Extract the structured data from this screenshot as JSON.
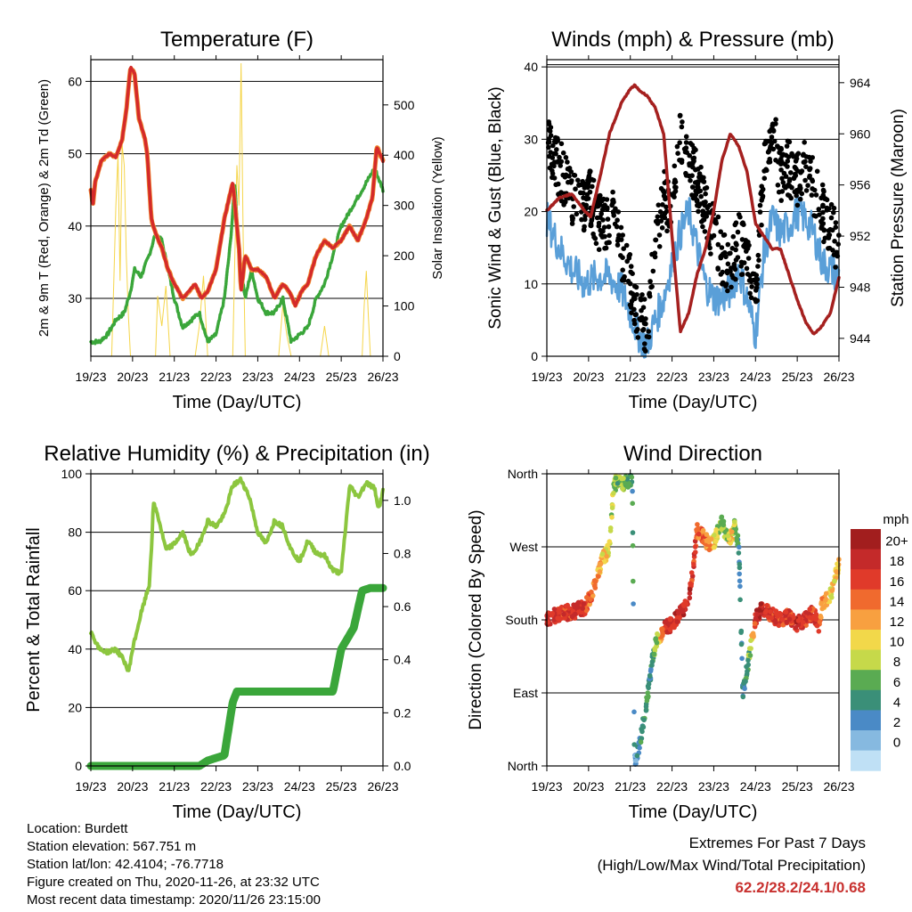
{
  "x_ticks": [
    "19/23",
    "20/23",
    "21/23",
    "22/23",
    "23/23",
    "24/23",
    "25/23",
    "26/23"
  ],
  "x_label": "Time (Day/UTC)",
  "info": {
    "location": "Location: Burdett",
    "elevation": "Station elevation: 567.751 m",
    "latlon": "Station lat/lon: 42.4104; -76.7718",
    "created": "Figure created on Thu, 2020-11-26, at 23:32 UTC",
    "recent": "Most recent data timestamp: 2020/11/26 23:15:00"
  },
  "extremes": {
    "title": "Extremes For Past 7 Days",
    "subtitle": "(High/Low/Max Wind/Total Precipitation)",
    "values": "62.2/28.2/24.1/0.68"
  },
  "colors": {
    "temp": "#d42a2a",
    "temp9m": "#f08a30",
    "dewpoint": "#3aa63a",
    "solar": "#f5d54a",
    "wind": "#5a9fd8",
    "gust": "#000000",
    "pressure": "#a5201f",
    "rh": "#8cc63f",
    "precip": "#3aa63a"
  },
  "chart_data": [
    {
      "type": "line",
      "title": "Temperature (F)",
      "xlabel": "Time (Day/UTC)",
      "ylabel": "2m & 9m T (Red, Orange) & 2m Td (Green)",
      "y2label": "Solar Insolation (Yellow)",
      "xlim": [
        0,
        7
      ],
      "ylim": [
        22,
        63
      ],
      "y2lim": [
        0,
        590
      ],
      "yticks": [
        30,
        40,
        50,
        60
      ],
      "y2ticks": [
        0,
        100,
        200,
        300,
        400,
        500
      ],
      "grid": true,
      "series": [
        {
          "role": "temperature_2m",
          "x": [
            0,
            0.05,
            0.1,
            0.25,
            0.45,
            0.6,
            0.75,
            0.85,
            0.95,
            1.05,
            1.15,
            1.3,
            1.35,
            1.45,
            1.55,
            1.7,
            1.85,
            2.0,
            2.2,
            2.35,
            2.5,
            2.65,
            2.8,
            3.0,
            3.2,
            3.4,
            3.55,
            3.6,
            3.7,
            3.85,
            4.0,
            4.2,
            4.4,
            4.6,
            4.75,
            4.9,
            5.05,
            5.2,
            5.4,
            5.6,
            5.8,
            6.0,
            6.2,
            6.4,
            6.6,
            6.75,
            6.85,
            7.0
          ],
          "y": [
            45,
            43,
            46,
            49,
            50,
            49.5,
            52,
            56,
            62,
            61,
            55,
            52,
            50,
            41,
            39,
            37,
            34,
            32,
            30,
            31,
            32,
            30,
            31,
            34,
            41,
            46,
            37,
            31,
            36,
            34,
            34,
            33,
            30,
            32,
            31,
            29,
            31,
            32,
            36,
            38,
            37,
            38,
            40,
            38,
            41,
            44,
            51,
            49
          ]
        },
        {
          "role": "dewpoint_2m",
          "x": [
            0,
            0.2,
            0.4,
            0.6,
            0.8,
            0.95,
            1.05,
            1.2,
            1.4,
            1.55,
            1.7,
            1.85,
            2.0,
            2.2,
            2.4,
            2.6,
            2.8,
            3.0,
            3.2,
            3.35,
            3.45,
            3.55,
            3.7,
            3.85,
            4.0,
            4.2,
            4.4,
            4.6,
            4.8,
            5.0,
            5.2,
            5.4,
            5.6,
            5.8,
            6.0,
            6.2,
            6.4,
            6.6,
            6.8,
            7.0
          ],
          "y": [
            24,
            24,
            25,
            27,
            28,
            31,
            34,
            33,
            36,
            39,
            38,
            34,
            30,
            26,
            27,
            28,
            24,
            25,
            30,
            38,
            46,
            36,
            30,
            34,
            30,
            28,
            28,
            30,
            24,
            25,
            26,
            30,
            32,
            36,
            40,
            42,
            44,
            46,
            48,
            45
          ]
        },
        {
          "role": "solar_insolation",
          "x": [
            0.5,
            0.55,
            0.6,
            0.65,
            0.7,
            0.75,
            0.8,
            0.85,
            0.9,
            0.95,
            1.55,
            1.6,
            1.7,
            1.8,
            1.9,
            2.5,
            2.6,
            2.7,
            2.8,
            3.4,
            3.45,
            3.5,
            3.55,
            3.6,
            3.65,
            3.7,
            4.5,
            4.6,
            4.7,
            4.8,
            5.5,
            5.6,
            5.7,
            6.5,
            6.55,
            6.6,
            6.65,
            6.7
          ],
          "y": [
            0,
            150,
            300,
            400,
            150,
            420,
            380,
            200,
            80,
            0,
            0,
            120,
            60,
            140,
            0,
            0,
            60,
            160,
            0,
            0,
            200,
            380,
            300,
            583,
            240,
            0,
            0,
            100,
            40,
            0,
            0,
            60,
            0,
            0,
            100,
            170,
            80,
            0
          ]
        }
      ]
    },
    {
      "type": "scatter",
      "title": "Winds (mph) & Pressure (mb)",
      "xlabel": "Time (Day/UTC)",
      "ylabel": "Sonic Wind & Gust (Blue, Black)",
      "y2label": "Station Pressure (Maroon)",
      "xlim": [
        0,
        7
      ],
      "ylim": [
        0,
        41
      ],
      "y2lim": [
        942.6,
        965.8
      ],
      "yticks": [
        0,
        10,
        20,
        30,
        40
      ],
      "y2ticks": [
        944,
        948,
        952,
        956,
        960,
        964
      ],
      "grid": true,
      "series": [
        {
          "role": "sonic_wind",
          "x": [
            0,
            0.3,
            0.6,
            0.9,
            1.2,
            1.5,
            1.8,
            2.0,
            2.2,
            2.4,
            2.6,
            2.8,
            3.0,
            3.2,
            3.4,
            3.6,
            3.8,
            4.0,
            4.2,
            4.4,
            4.6,
            4.8,
            5.0,
            5.2,
            5.4,
            5.6,
            5.8,
            6.0,
            6.2,
            6.4,
            6.6,
            6.8,
            7.0
          ],
          "y": [
            19,
            15,
            12,
            10,
            11,
            11,
            9,
            6,
            3,
            1.5,
            5,
            8,
            13,
            17,
            20,
            15,
            10,
            8,
            8,
            9,
            12,
            8,
            3,
            14,
            19,
            17,
            18,
            20,
            19,
            17,
            13,
            12,
            11
          ]
        },
        {
          "role": "gust",
          "x": [
            0,
            0.2,
            0.4,
            0.6,
            0.8,
            1.0,
            1.2,
            1.4,
            1.6,
            1.8,
            2.0,
            2.2,
            2.4,
            2.6,
            2.8,
            3.0,
            3.2,
            3.4,
            3.6,
            3.8,
            4.0,
            4.2,
            4.4,
            4.6,
            4.8,
            5.0,
            5.2,
            5.4,
            5.6,
            5.8,
            6.0,
            6.2,
            6.4,
            6.6,
            6.8,
            7.0
          ],
          "y": [
            30,
            27,
            25,
            22,
            20,
            23,
            19,
            18,
            21,
            14,
            10,
            6,
            4,
            15,
            22,
            19,
            31,
            27,
            24,
            20,
            17,
            14,
            12,
            16,
            13,
            7,
            27,
            32,
            25,
            26,
            24,
            26,
            23,
            20,
            18,
            15
          ]
        },
        {
          "role": "pressure",
          "x": [
            0,
            0.3,
            0.6,
            0.9,
            1.05,
            1.3,
            1.5,
            1.8,
            2.0,
            2.1,
            2.25,
            2.4,
            2.6,
            2.8,
            3.0,
            3.2,
            3.4,
            3.6,
            3.8,
            4.0,
            4.2,
            4.4,
            4.6,
            4.8,
            5.0,
            5.2,
            5.4,
            5.6,
            5.8,
            6.0,
            6.2,
            6.4,
            6.6,
            6.8,
            7.0
          ],
          "y": [
            954,
            955,
            955.3,
            954,
            953.5,
            957,
            960,
            962.5,
            963.5,
            963.8,
            963.3,
            963,
            962,
            960,
            952,
            944.5,
            946,
            949,
            951,
            954,
            958,
            960,
            959,
            957,
            953,
            952,
            951,
            951,
            949,
            947,
            945.3,
            944.3,
            945,
            946,
            948.8
          ]
        }
      ]
    },
    {
      "type": "line",
      "title": "Relative Humidity (%) & Precipitation (in)",
      "xlabel": "Time (Day/UTC)",
      "ylabel": "Percent & Total Rainfall",
      "xlim": [
        0,
        7
      ],
      "ylim": [
        0,
        100
      ],
      "y2lim": [
        0,
        1.1
      ],
      "yticks": [
        0,
        20,
        40,
        60,
        80,
        100
      ],
      "y2ticks": [
        0.0,
        0.2,
        0.4,
        0.6,
        0.8,
        1.0
      ],
      "grid": true,
      "series": [
        {
          "role": "relative_humidity",
          "x": [
            0,
            0.1,
            0.2,
            0.4,
            0.6,
            0.8,
            0.9,
            1.0,
            1.2,
            1.4,
            1.45,
            1.5,
            1.6,
            1.7,
            1.8,
            2.0,
            2.2,
            2.4,
            2.6,
            2.8,
            3.0,
            3.2,
            3.4,
            3.5,
            3.6,
            3.8,
            4.0,
            4.2,
            4.4,
            4.6,
            4.8,
            5.0,
            5.2,
            5.4,
            5.6,
            5.8,
            6.0,
            6.2,
            6.4,
            6.6,
            6.8,
            6.9,
            7.0
          ],
          "y": [
            46,
            43,
            40,
            39,
            40,
            36,
            32,
            40,
            52,
            62,
            74,
            90,
            86,
            80,
            74,
            76,
            80,
            72,
            76,
            84,
            82,
            86,
            96,
            97,
            98,
            92,
            80,
            76,
            84,
            82,
            74,
            70,
            77,
            73,
            72,
            67,
            66,
            96,
            92,
            97,
            95,
            88,
            94
          ]
        },
        {
          "role": "total_precipitation",
          "x": [
            0,
            1.0,
            2.0,
            2.6,
            2.8,
            3.2,
            3.4,
            3.5,
            4.0,
            4.8,
            5.5,
            5.8,
            6.0,
            6.3,
            6.5,
            6.7,
            7.0
          ],
          "y": [
            0,
            0,
            0,
            0,
            0.02,
            0.04,
            0.24,
            0.28,
            0.28,
            0.28,
            0.28,
            0.28,
            0.44,
            0.52,
            0.66,
            0.67,
            0.67
          ]
        }
      ]
    },
    {
      "type": "scatter",
      "title": "Wind Direction",
      "xlabel": "Time (Day/UTC)",
      "ylabel": "Direction (Colored By Speed)",
      "xlim": [
        0,
        7
      ],
      "ylim": [
        0,
        360
      ],
      "ytick_labels": [
        "North",
        "East",
        "South",
        "West",
        "North"
      ],
      "yticks": [
        0,
        90,
        180,
        270,
        360
      ],
      "grid": true,
      "colorbar": {
        "label": "mph",
        "ticks": [
          "20+",
          "18",
          "16",
          "14",
          "12",
          "10",
          "8",
          "6",
          "4",
          "2",
          "0"
        ],
        "colors": [
          "#a21e1e",
          "#c42a2a",
          "#e03a2a",
          "#f06a2e",
          "#f8a040",
          "#f2d84a",
          "#c6d94a",
          "#5aab52",
          "#3a8f78",
          "#4a8ac6",
          "#86b9e0",
          "#bfe0f5"
        ]
      },
      "series": [
        {
          "role": "direction",
          "x": [
            0,
            0.2,
            0.4,
            0.6,
            0.8,
            0.9,
            1.0,
            1.1,
            1.2,
            1.3,
            1.4,
            1.5,
            1.6,
            1.7,
            1.8,
            1.9,
            2.0,
            2.05,
            2.1,
            2.2,
            2.3,
            2.4,
            2.5,
            2.6,
            2.8,
            3.0,
            3.2,
            3.4,
            3.6,
            3.8,
            3.9,
            4.0,
            4.1,
            4.2,
            4.3,
            4.4,
            4.5,
            4.6,
            4.7,
            4.8,
            4.9,
            5.0,
            5.1,
            5.2,
            5.4,
            5.6,
            5.8,
            6.0,
            6.2,
            6.4,
            6.5,
            6.6,
            6.8,
            7.0
          ],
          "y": [
            180,
            185,
            190,
            188,
            195,
            192,
            205,
            215,
            230,
            250,
            260,
            270,
            345,
            352,
            348,
            350,
            355,
            345,
            5,
            20,
            50,
            80,
            120,
            150,
            170,
            175,
            190,
            200,
            290,
            280,
            270,
            275,
            290,
            300,
            285,
            280,
            295,
            270,
            90,
            120,
            150,
            180,
            190,
            195,
            185,
            180,
            185,
            175,
            180,
            190,
            170,
            200,
            210,
            250
          ],
          "speed": [
            18,
            17,
            16,
            17,
            18,
            16,
            15,
            14,
            12,
            11,
            10,
            9,
            7,
            6,
            8,
            5,
            6,
            4,
            2,
            3,
            4,
            5,
            4,
            6,
            16,
            18,
            17,
            18,
            15,
            13,
            12,
            10,
            8,
            6,
            7,
            12,
            8,
            3,
            3,
            5,
            9,
            17,
            18,
            17,
            16,
            17,
            16,
            18,
            17,
            16,
            15,
            12,
            10,
            11
          ]
        }
      ]
    }
  ]
}
